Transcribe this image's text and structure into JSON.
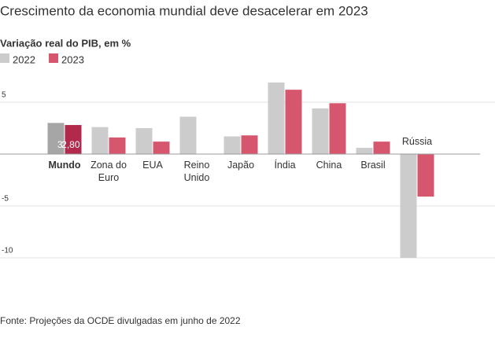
{
  "chart_data": {
    "type": "bar",
    "title": "Crescimento da economia mundial deve desacelerar em 2023",
    "subtitle": "Variação real do PIB, em %",
    "source": "Fonte: Projeções da OCDE divulgadas em junho de 2022",
    "categories": [
      "Mundo",
      "Zona do Euro",
      "EUA",
      "Reino Unido",
      "Japão",
      "Índia",
      "China",
      "Brasil",
      "Rússia"
    ],
    "highlight": "Mundo",
    "series": [
      {
        "name": "2022",
        "color": "#cccccc",
        "highlight_color": "#a6a6a6",
        "values": [
          3,
          2.6,
          2.5,
          3.6,
          1.7,
          6.9,
          4.4,
          0.6,
          -10
        ],
        "value_labels": [
          "3",
          null,
          null,
          null,
          null,
          null,
          null,
          null,
          null
        ]
      },
      {
        "name": "2023",
        "color": "#d6566e",
        "highlight_color": "#b22a4b",
        "values": [
          2.8,
          1.6,
          1.2,
          0,
          1.8,
          6.2,
          4.9,
          1.2,
          -4.1
        ],
        "value_labels": [
          "2,80",
          null,
          null,
          null,
          null,
          null,
          null,
          null,
          null
        ]
      }
    ],
    "ylim": [
      -10,
      7.5
    ],
    "yticks": [
      -10,
      -5,
      5
    ],
    "grid": true
  }
}
